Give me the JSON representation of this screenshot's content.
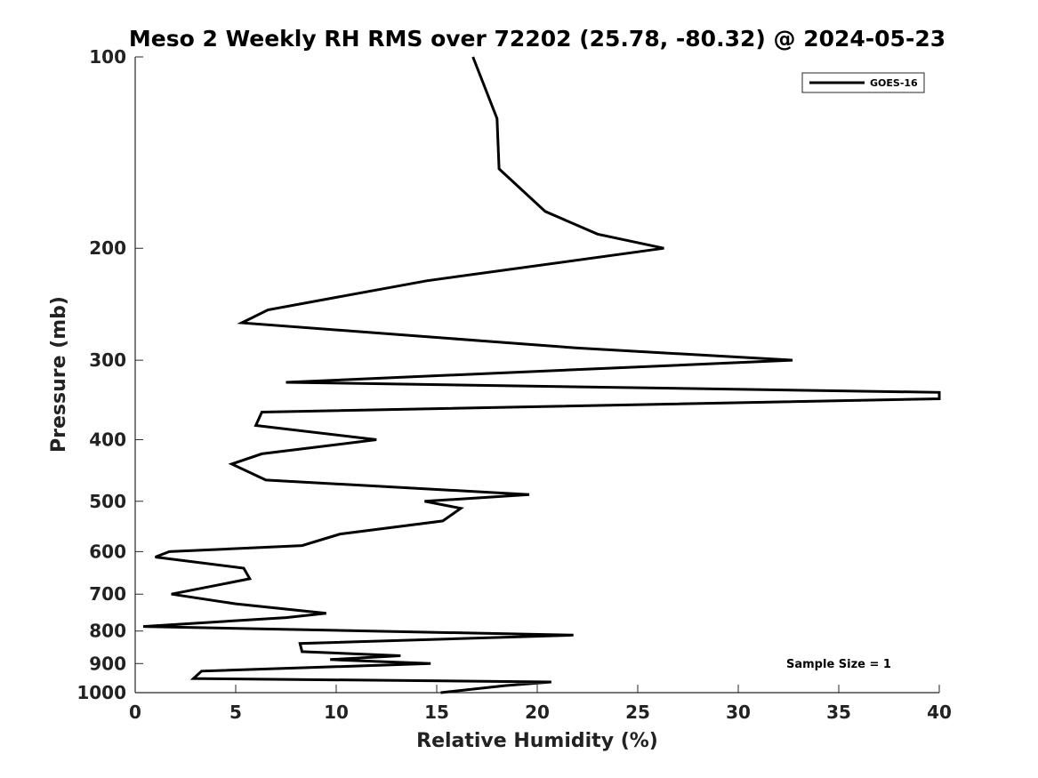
{
  "chart_data": {
    "type": "line",
    "title": "Meso 2 Weekly RH RMS over 72202 (25.78, -80.32) @ 2024-05-23",
    "xlabel": "Relative Humidity (%)",
    "ylabel": "Pressure (mb)",
    "xlim": [
      0,
      40
    ],
    "ylim": [
      100,
      1000
    ],
    "y_scale": "log",
    "y_reversed": true,
    "x_ticks": [
      0,
      5,
      10,
      15,
      20,
      25,
      30,
      35,
      40
    ],
    "y_ticks": [
      100,
      200,
      300,
      400,
      500,
      600,
      700,
      800,
      900,
      1000
    ],
    "grid": false,
    "legend_position": "top-right",
    "line_color": "#000000",
    "annotation": "Sample Size = 1",
    "series": [
      {
        "name": "GOES-16",
        "points": [
          [
            16.8,
            100
          ],
          [
            18.0,
            125
          ],
          [
            18.1,
            150
          ],
          [
            20.4,
            175
          ],
          [
            23.0,
            190
          ],
          [
            26.3,
            200
          ],
          [
            14.5,
            225
          ],
          [
            6.6,
            250
          ],
          [
            5.3,
            262
          ],
          [
            22.0,
            287
          ],
          [
            32.7,
            300
          ],
          [
            7.5,
            325
          ],
          [
            40.0,
            337
          ],
          [
            40.0,
            345
          ],
          [
            6.3,
            362
          ],
          [
            6.0,
            380
          ],
          [
            12.0,
            400
          ],
          [
            6.3,
            421
          ],
          [
            4.8,
            437
          ],
          [
            6.5,
            463
          ],
          [
            19.6,
            488
          ],
          [
            14.4,
            500
          ],
          [
            16.2,
            513
          ],
          [
            15.3,
            537
          ],
          [
            10.2,
            563
          ],
          [
            8.3,
            587
          ],
          [
            1.7,
            600
          ],
          [
            1.0,
            612
          ],
          [
            5.4,
            637
          ],
          [
            5.7,
            662
          ],
          [
            1.8,
            700
          ],
          [
            5.0,
            725
          ],
          [
            9.5,
            750
          ],
          [
            7.5,
            762
          ],
          [
            0.4,
            787
          ],
          [
            21.8,
            812
          ],
          [
            8.2,
            837
          ],
          [
            8.3,
            862
          ],
          [
            13.2,
            875
          ],
          [
            9.7,
            887
          ],
          [
            14.7,
            900
          ],
          [
            3.3,
            925
          ],
          [
            2.9,
            950
          ],
          [
            20.7,
            962
          ],
          [
            18.4,
            975
          ],
          [
            15.2,
            1000
          ]
        ]
      }
    ]
  }
}
